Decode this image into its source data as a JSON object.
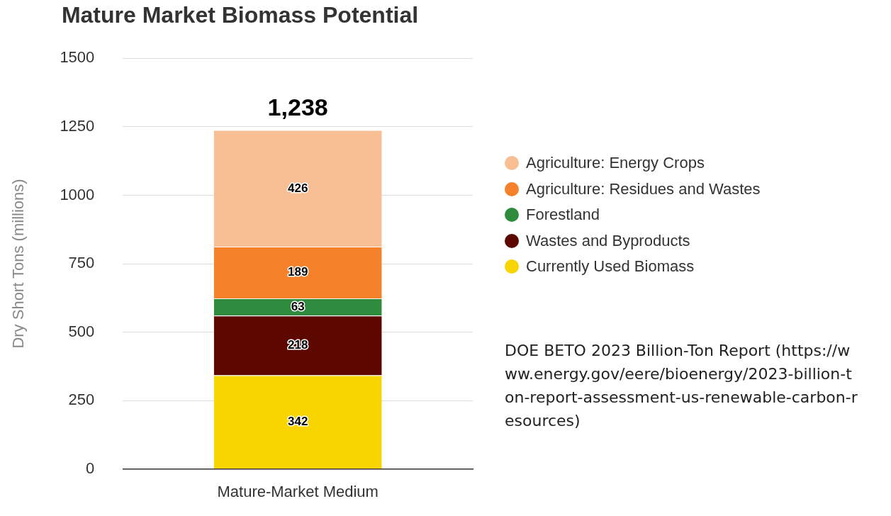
{
  "chart_data": {
    "type": "bar",
    "title": "Mature Market Biomass Potential",
    "ylabel": "Dry Short Tons (millions)",
    "categories": [
      "Mature-Market Medium"
    ],
    "series": [
      {
        "name": "Currently Used Biomass",
        "color": "#f9d500",
        "values": [
          342
        ]
      },
      {
        "name": "Wastes and Byproducts",
        "color": "#5c0800",
        "values": [
          218
        ]
      },
      {
        "name": "Forestland",
        "color": "#2e8b3e",
        "values": [
          63
        ]
      },
      {
        "name": "Agriculture: Residues and Wastes",
        "color": "#f5822a",
        "values": [
          189
        ]
      },
      {
        "name": "Agriculture: Energy Crops",
        "color": "#f8bf94",
        "values": [
          426
        ]
      }
    ],
    "stacked": true,
    "ylim": [
      0,
      1500
    ],
    "yticks": [
      0,
      250,
      500,
      750,
      1000,
      1250,
      1500
    ],
    "grid": "y",
    "legend": "right",
    "data_labels": true,
    "totals": [
      "1,238"
    ],
    "annotations": [
      "DOE BETO 2023 Billion-Ton Report (https://www.energy.gov/eere/bioenergy/2023-billion-ton-report-assessment-us-renewable-carbon-resources)"
    ]
  }
}
